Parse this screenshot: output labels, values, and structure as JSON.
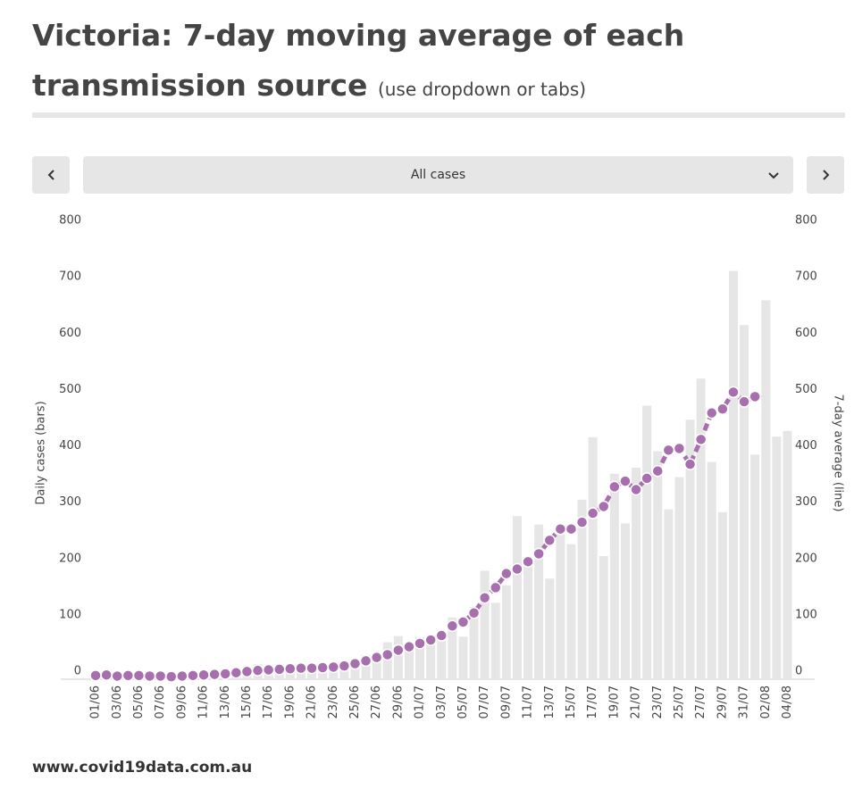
{
  "chart_data": {
    "type": "bar",
    "title": "Victoria: 7-day moving average of each transmission source",
    "subtitle": "(use dropdown or tabs)",
    "ylabel": "Daily cases (bars)",
    "y2label": "7-day average (line)",
    "categories": [
      "01/06",
      null,
      "03/06",
      null,
      "05/06",
      null,
      "07/06",
      null,
      "09/06",
      null,
      "11/06",
      null,
      "13/06",
      null,
      "15/06",
      null,
      "17/06",
      null,
      "19/06",
      null,
      "21/06",
      null,
      "23/06",
      null,
      "25/06",
      null,
      "27/06",
      null,
      "29/06",
      null,
      "01/07",
      null,
      "03/07",
      null,
      "05/07",
      null,
      "07/07",
      null,
      "09/07",
      null,
      "11/07",
      null,
      "13/07",
      null,
      "15/07",
      null,
      "17/07",
      null,
      "19/07",
      null,
      "21/07",
      null,
      "23/07",
      null,
      "25/07",
      null,
      "27/07",
      null,
      "29/07",
      null,
      "31/07",
      null,
      "02/08",
      null,
      "04/08"
    ],
    "series": [
      {
        "type": "bar",
        "color": "#e6e6e6",
        "values": [
          4,
          7,
          1,
          8,
          9,
          4,
          2,
          4,
          8,
          8,
          12,
          12,
          9,
          18,
          21,
          25,
          17,
          19,
          17,
          13,
          20,
          19,
          20,
          25,
          33,
          41,
          30,
          64,
          75,
          64,
          73,
          77,
          66,
          108,
          74,
          127,
          191,
          134,
          165,
          288,
          216,
          273,
          177,
          270,
          238,
          317,
          428,
          217,
          363,
          275,
          374,
          484,
          403,
          300,
          357,
          459,
          532,
          384,
          295,
          723,
          627,
          397,
          671,
          429,
          439
        ]
      },
      {
        "type": "line",
        "axis": "y2",
        "color": "#a86fae",
        "values": [
          5,
          6,
          4,
          5,
          5,
          4,
          4,
          3,
          4,
          5,
          6,
          7,
          8,
          10,
          12,
          14,
          15,
          16,
          17,
          18,
          18,
          19,
          20,
          22,
          26,
          31,
          37,
          42,
          50,
          56,
          62,
          68,
          76,
          93,
          100,
          116,
          143,
          161,
          186,
          194,
          207,
          221,
          245,
          265,
          265,
          277,
          293,
          305,
          340,
          350,
          335,
          355,
          368,
          405,
          408,
          380,
          424,
          471,
          478,
          508,
          491,
          500,
          null,
          null,
          null
        ]
      }
    ],
    "ylim": [
      0,
      800
    ],
    "yticks": [
      0,
      100,
      200,
      300,
      400,
      500,
      600,
      700,
      800
    ],
    "y2lim": [
      0,
      800
    ],
    "y2ticks": [
      0,
      100,
      200,
      300,
      400,
      500,
      600,
      700,
      800
    ]
  },
  "dropdown": "All cases",
  "footer": "www.covid19data.com.au"
}
